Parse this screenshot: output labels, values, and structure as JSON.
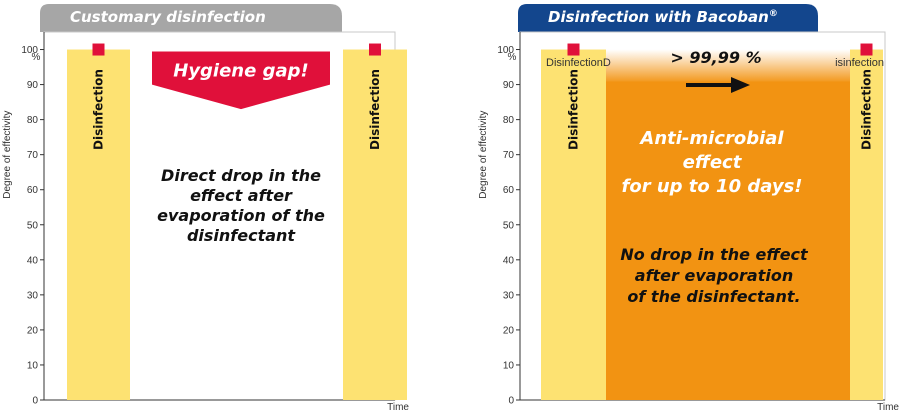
{
  "chart_data": [
    {
      "type": "bar",
      "title": "Customary disinfection",
      "ylabel": "Degree of effectivity",
      "ylabel_unit": "%",
      "xlabel": "Time",
      "yticks": [
        0,
        10,
        20,
        30,
        40,
        50,
        60,
        70,
        80,
        90,
        100
      ],
      "ylim": [
        0,
        105
      ],
      "grid": false,
      "series": [
        {
          "name": "Disinfection",
          "values": [
            100,
            100
          ]
        }
      ],
      "gap_label": "Hygiene gap!",
      "annotation": [
        "Direct drop in the",
        "effect after",
        "evaporation of the",
        "disinfectant"
      ],
      "colors": {
        "tab": "#a6a6a6",
        "bar": "#fde272",
        "marker": "#e0103a",
        "gap_arrow": "#e0103a"
      }
    },
    {
      "type": "bar",
      "title": "Disinfection with Bacoban",
      "title_mark": "®",
      "ylabel": "Degree of effectivity",
      "ylabel_unit": "%",
      "xlabel": "Time",
      "yticks": [
        0,
        10,
        20,
        30,
        40,
        50,
        60,
        70,
        80,
        90,
        100
      ],
      "ylim": [
        0,
        105
      ],
      "grid": false,
      "series": [
        {
          "name": "Disinfection",
          "values": [
            100,
            100
          ]
        }
      ],
      "effect_level": 96,
      "top_labels": {
        "left": "DisinfectionD",
        "right": "isinfection"
      },
      "arrow_label": "> 99,99 %",
      "effect_label": [
        "Anti-microbial",
        "effect",
        "for up to 10 days!"
      ],
      "annotation": [
        "No drop in the effect",
        "after evaporation",
        "of the disinfectant."
      ],
      "colors": {
        "tab": "#13468d",
        "bar": "#fde272",
        "marker": "#e0103a",
        "effect": "#f29312"
      }
    }
  ]
}
